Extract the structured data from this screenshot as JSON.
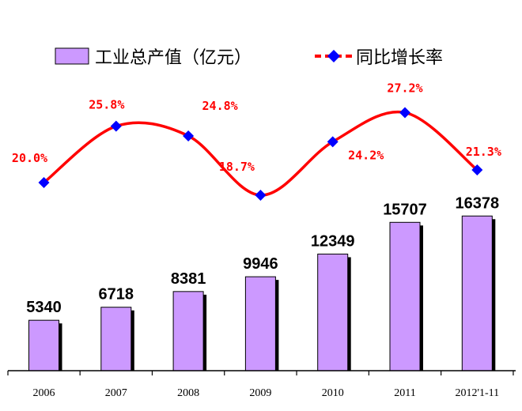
{
  "chart_data": {
    "type": "bar",
    "categories": [
      "2006",
      "2007",
      "2008",
      "2009",
      "2010",
      "2011",
      "2012'1-11"
    ],
    "series": [
      {
        "name": "工业总产值（亿元）",
        "type": "bar",
        "values": [
          5340,
          6718,
          8381,
          9946,
          12349,
          15707,
          16378
        ],
        "data_labels": [
          "5340",
          "6718",
          "8381",
          "9946",
          "12349",
          "15707",
          "16378"
        ]
      },
      {
        "name": "同比增长率",
        "type": "line",
        "values": [
          20.0,
          25.8,
          24.8,
          18.7,
          24.2,
          27.2,
          21.3
        ],
        "data_labels": [
          "20.0%",
          "25.8%",
          "24.8%",
          "18.7%",
          "24.2%",
          "27.2%",
          "21.3%"
        ]
      }
    ],
    "legend": "top",
    "grid": false,
    "colors": {
      "bar": "#cc99ff",
      "line": "#ff0000",
      "marker": "#0000ff"
    }
  }
}
